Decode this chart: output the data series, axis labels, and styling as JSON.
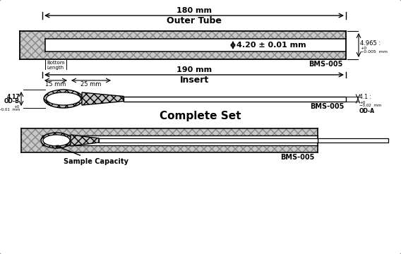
{
  "title_outer_tube": "Outer Tube",
  "label_180mm": "180 mm",
  "label_4p20": "4.20 ± 0.01 mm",
  "label_4965": "4.965 :",
  "label_4965_sup": "+0",
  "label_4965_sub": "-0.005  mm",
  "label_bms005_1": "BMS-005",
  "label_bottom_length": "Bottom\nLength",
  "label_190mm": "190 mm",
  "title_insert": "Insert",
  "label_15mm": "15 mm",
  "label_25mm": "25 mm",
  "label_417": "4.17",
  "label_ODB": "OD-B",
  "label_417_sup": "+0",
  "label_417_sub": "-0.01  mm",
  "label_41": "4.1 :",
  "label_41_sup": "+0",
  "label_41_sub": "-0.02  mm",
  "label_ODA": "OD-A",
  "label_bms005_2": "BMS-005",
  "title_complete": "Complete Set",
  "label_sample": "Sample Capacity",
  "label_bms005_3": "BMS-005",
  "hatch_gray": "#c8c8c8",
  "line_color": "#000000",
  "bg_color": "#ffffff"
}
